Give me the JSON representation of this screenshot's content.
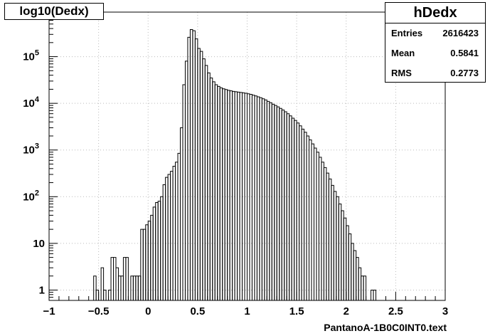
{
  "chart_data": {
    "type": "histogram",
    "title": "log10(Dedx)",
    "xlabel": "PantanoA-1B0C0INT0.text",
    "ylabel": "",
    "xlim": [
      -1,
      3
    ],
    "ylog": true,
    "ylim": [
      0.6,
      900000
    ],
    "grid": true,
    "x_ticks": [
      -1,
      -0.5,
      0,
      0.5,
      1,
      1.5,
      2,
      2.5,
      3
    ],
    "x_tick_labels": [
      "−1",
      "−0.5",
      "0",
      "0.5",
      "1",
      "1.5",
      "2",
      "2.5",
      "3"
    ],
    "y_ticks": [
      1,
      10,
      100,
      1000,
      10000,
      100000
    ],
    "y_tick_labels": [
      "1",
      "10",
      "10^2",
      "10^3",
      "10^4",
      "10^5"
    ],
    "bin_width": 0.025,
    "bins": [
      [
        -0.55,
        2
      ],
      [
        -0.525,
        1
      ],
      [
        -0.475,
        3
      ],
      [
        -0.45,
        1
      ],
      [
        -0.4,
        1
      ],
      [
        -0.375,
        5
      ],
      [
        -0.35,
        5
      ],
      [
        -0.325,
        3
      ],
      [
        -0.3,
        2
      ],
      [
        -0.275,
        2
      ],
      [
        -0.25,
        5
      ],
      [
        -0.225,
        5
      ],
      [
        -0.175,
        2
      ],
      [
        -0.15,
        2
      ],
      [
        -0.125,
        2
      ],
      [
        -0.1,
        2
      ],
      [
        -0.075,
        20
      ],
      [
        -0.05,
        20
      ],
      [
        -0.025,
        25
      ],
      [
        0.0,
        30
      ],
      [
        0.025,
        40
      ],
      [
        0.05,
        60
      ],
      [
        0.075,
        75
      ],
      [
        0.1,
        80
      ],
      [
        0.125,
        100
      ],
      [
        0.15,
        180
      ],
      [
        0.175,
        260
      ],
      [
        0.2,
        300
      ],
      [
        0.225,
        350
      ],
      [
        0.25,
        450
      ],
      [
        0.275,
        550
      ],
      [
        0.3,
        850
      ],
      [
        0.325,
        3000
      ],
      [
        0.35,
        25000
      ],
      [
        0.375,
        80000
      ],
      [
        0.4,
        260000
      ],
      [
        0.425,
        380000
      ],
      [
        0.45,
        360000
      ],
      [
        0.475,
        240000
      ],
      [
        0.5,
        150000
      ],
      [
        0.525,
        130000
      ],
      [
        0.55,
        90000
      ],
      [
        0.575,
        65000
      ],
      [
        0.6,
        45000
      ],
      [
        0.625,
        35000
      ],
      [
        0.65,
        29000
      ],
      [
        0.675,
        25000
      ],
      [
        0.7,
        23000
      ],
      [
        0.725,
        21500
      ],
      [
        0.75,
        20500
      ],
      [
        0.775,
        19800
      ],
      [
        0.8,
        19000
      ],
      [
        0.825,
        18500
      ],
      [
        0.85,
        18000
      ],
      [
        0.875,
        17700
      ],
      [
        0.9,
        17400
      ],
      [
        0.925,
        17100
      ],
      [
        0.95,
        16800
      ],
      [
        0.975,
        16400
      ],
      [
        1.0,
        16000
      ],
      [
        1.025,
        15600
      ],
      [
        1.05,
        15000
      ],
      [
        1.075,
        14400
      ],
      [
        1.1,
        13800
      ],
      [
        1.125,
        13200
      ],
      [
        1.15,
        12500
      ],
      [
        1.175,
        11800
      ],
      [
        1.2,
        11000
      ],
      [
        1.225,
        10300
      ],
      [
        1.25,
        9600
      ],
      [
        1.275,
        9000
      ],
      [
        1.3,
        8400
      ],
      [
        1.325,
        7800
      ],
      [
        1.35,
        7200
      ],
      [
        1.375,
        6600
      ],
      [
        1.4,
        6000
      ],
      [
        1.425,
        5400
      ],
      [
        1.45,
        4800
      ],
      [
        1.475,
        4300
      ],
      [
        1.5,
        3800
      ],
      [
        1.525,
        3300
      ],
      [
        1.55,
        2800
      ],
      [
        1.575,
        2400
      ],
      [
        1.6,
        2000
      ],
      [
        1.625,
        1650
      ],
      [
        1.65,
        1350
      ],
      [
        1.675,
        1100
      ],
      [
        1.7,
        900
      ],
      [
        1.725,
        700
      ],
      [
        1.75,
        550
      ],
      [
        1.775,
        420
      ],
      [
        1.8,
        320
      ],
      [
        1.825,
        240
      ],
      [
        1.85,
        175
      ],
      [
        1.875,
        130
      ],
      [
        1.9,
        100
      ],
      [
        1.925,
        70
      ],
      [
        1.95,
        50
      ],
      [
        1.975,
        35
      ],
      [
        2.0,
        24
      ],
      [
        2.025,
        16
      ],
      [
        2.05,
        10
      ],
      [
        2.075,
        7
      ],
      [
        2.1,
        5
      ],
      [
        2.125,
        3
      ],
      [
        2.15,
        2
      ],
      [
        2.175,
        2
      ],
      [
        2.25,
        1
      ],
      [
        2.275,
        1
      ]
    ]
  },
  "stats": {
    "name": "hDedx",
    "rows": [
      {
        "label": "Entries",
        "value": "2616423"
      },
      {
        "label": "Mean",
        "value": "0.5841"
      },
      {
        "label": "RMS",
        "value": "0.2773"
      }
    ]
  }
}
